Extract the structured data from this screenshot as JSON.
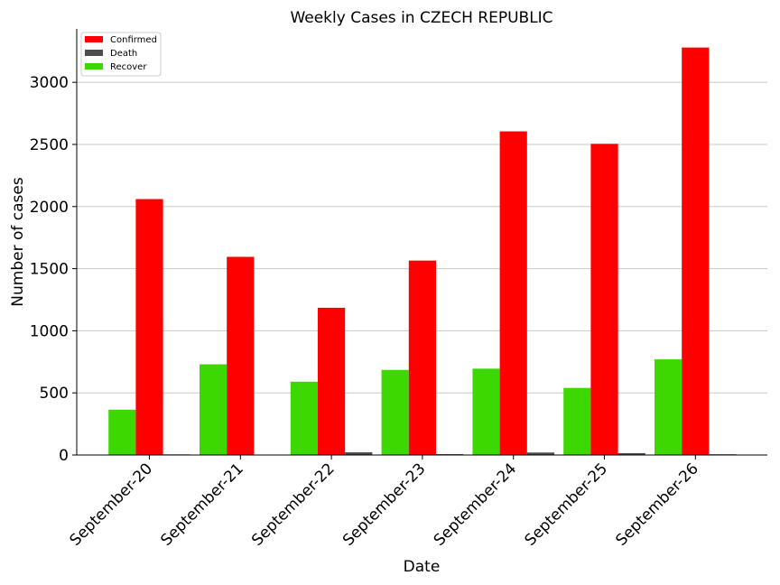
{
  "chart_data": {
    "type": "bar",
    "title": "Weekly Cases in CZECH REPUBLIC",
    "xlabel": "Date",
    "ylabel": "Number of cases",
    "categories": [
      "September-20",
      "September-21",
      "September-22",
      "September-23",
      "September-24",
      "September-25",
      "September-26"
    ],
    "series": [
      {
        "name": "Recover",
        "color": "#3dd802",
        "values": [
          365,
          730,
          590,
          685,
          695,
          540,
          770
        ]
      },
      {
        "name": "Confirmed",
        "color": "#ff0000",
        "values": [
          2060,
          1595,
          1185,
          1565,
          2605,
          2505,
          3280
        ]
      },
      {
        "name": "Death",
        "color": "#4d4d4d",
        "values": [
          5,
          1,
          22,
          7,
          20,
          15,
          6
        ]
      }
    ],
    "legend_order": [
      "Confirmed",
      "Death",
      "Recover"
    ],
    "legend_position": "top-left",
    "ylim": [
      0,
      3430
    ],
    "yticks": [
      0,
      500,
      1000,
      1500,
      2000,
      2500,
      3000
    ],
    "grid": "horizontal"
  }
}
